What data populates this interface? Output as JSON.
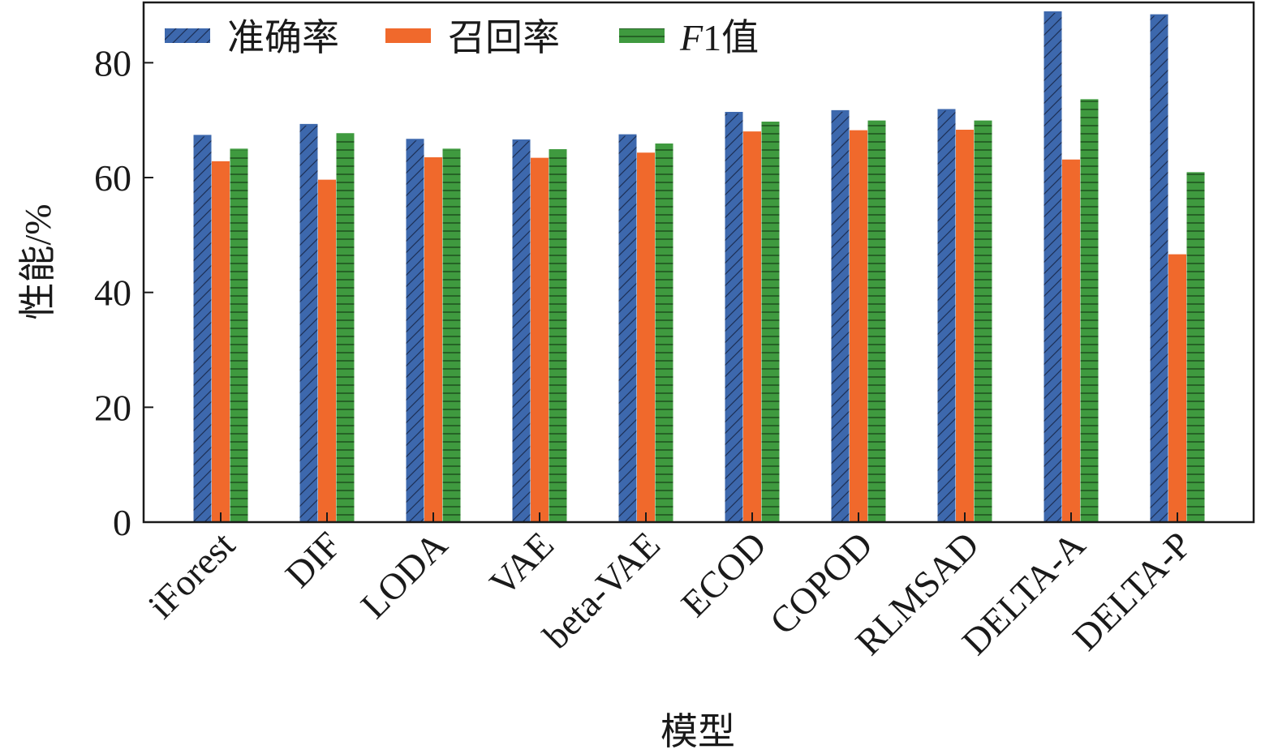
{
  "chart_data": {
    "type": "bar",
    "categories": [
      "iForest",
      "DIF",
      "LODA",
      "VAE",
      "beta-VAE",
      "ECOD",
      "COPOD",
      "RLMSAD",
      "DELTA-A",
      "DELTA-P"
    ],
    "series": [
      {
        "name": "准确率",
        "name_prefix": "",
        "name_suffix": "准确率",
        "color": "#3d68ad",
        "pattern": "diagonal",
        "values": [
          67.3,
          69.2,
          66.6,
          66.5,
          67.4,
          71.3,
          71.6,
          71.8,
          88.8,
          88.3
        ]
      },
      {
        "name": "召回率",
        "name_prefix": "",
        "name_suffix": "召回率",
        "color": "#f0692c",
        "pattern": "none",
        "values": [
          62.7,
          59.5,
          63.4,
          63.3,
          64.2,
          67.9,
          68.1,
          68.2,
          63.0,
          46.5
        ]
      },
      {
        "name": "F1值",
        "name_prefix": "F",
        "name_suffix": "1值",
        "color": "#3f9a3f",
        "pattern": "horizontal",
        "values": [
          64.9,
          67.6,
          64.9,
          64.8,
          65.8,
          69.6,
          69.8,
          69.8,
          73.5,
          60.8
        ]
      }
    ],
    "xlabel": "模型",
    "ylabel": "性能/%",
    "ylim": [
      0,
      90.5
    ],
    "yticks": [
      0,
      20,
      40,
      60,
      80
    ],
    "grid": false,
    "legend_position": "top-left"
  }
}
